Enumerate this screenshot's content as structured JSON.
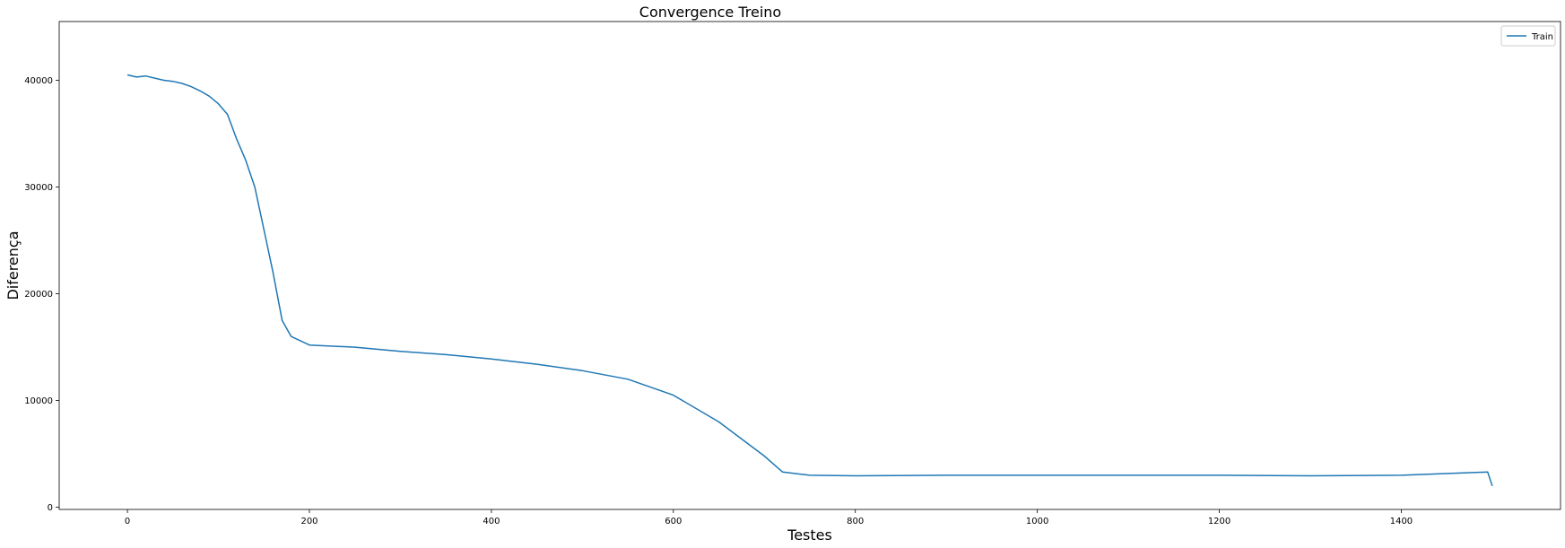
{
  "chart_data": {
    "type": "line",
    "title": "Convergence Treino",
    "xlabel": "Testes",
    "ylabel": "Diferença",
    "xlim": [
      -75,
      1575
    ],
    "ylim": [
      -200,
      45500
    ],
    "xticks": [
      0,
      200,
      400,
      600,
      800,
      1000,
      1200,
      1400
    ],
    "yticks": [
      0,
      10000,
      20000,
      30000,
      40000
    ],
    "grid": false,
    "legend": "top-right",
    "series": [
      {
        "name": "Train",
        "color": "#1f77b4",
        "x": [
          0,
          10,
          20,
          30,
          40,
          50,
          60,
          70,
          80,
          90,
          100,
          110,
          120,
          130,
          140,
          150,
          160,
          170,
          180,
          190,
          200,
          250,
          300,
          350,
          400,
          450,
          500,
          550,
          600,
          650,
          700,
          720,
          750,
          800,
          900,
          1000,
          1100,
          1200,
          1300,
          1400,
          1495,
          1500
        ],
        "y": [
          40500,
          40300,
          40400,
          40200,
          40000,
          39900,
          39700,
          39400,
          39000,
          38500,
          37800,
          36800,
          34500,
          32500,
          30000,
          26000,
          22000,
          17500,
          16000,
          15600,
          15200,
          15000,
          14600,
          14300,
          13900,
          13400,
          12800,
          12000,
          10500,
          8000,
          4800,
          3300,
          3000,
          2950,
          3000,
          3000,
          3000,
          3000,
          2950,
          3000,
          3300,
          2000
        ]
      }
    ]
  }
}
